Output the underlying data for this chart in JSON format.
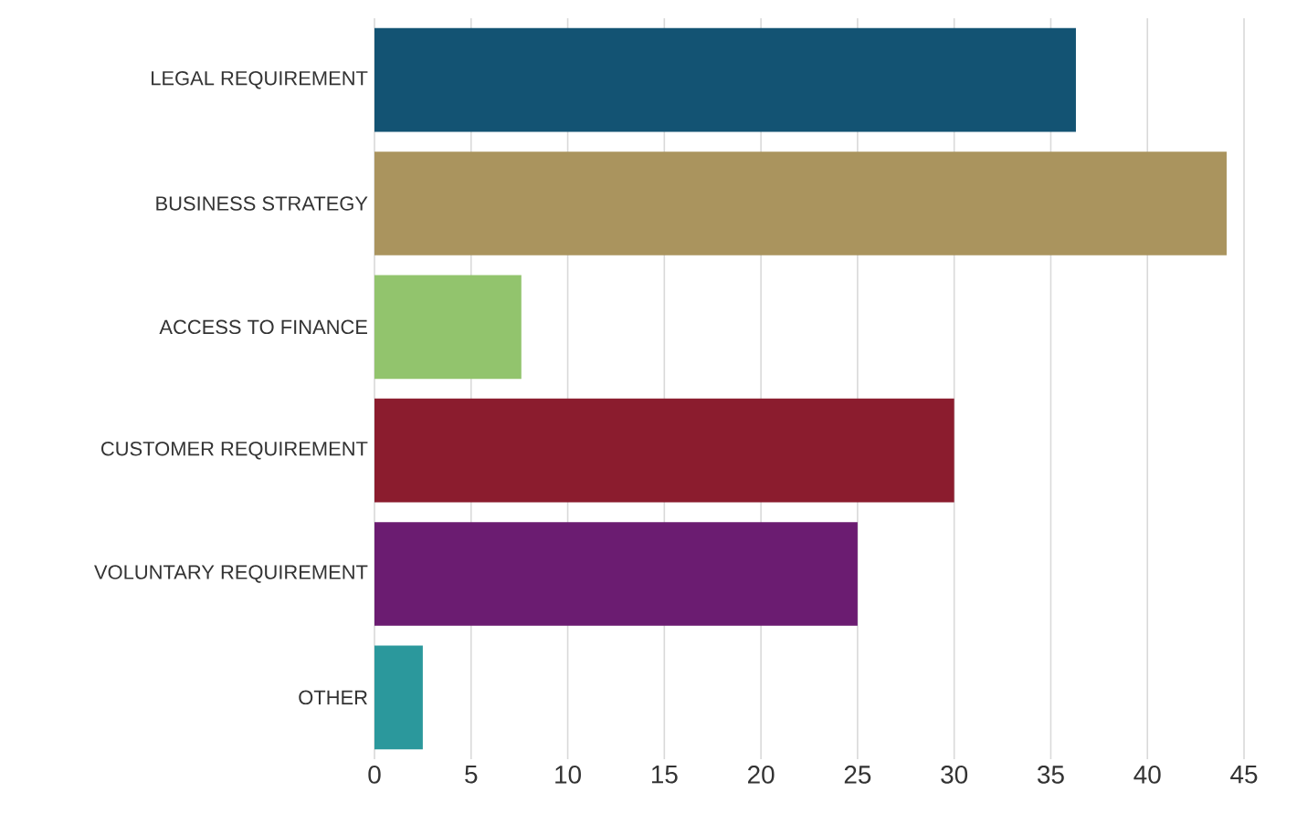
{
  "chart_data": {
    "type": "bar",
    "orientation": "horizontal",
    "categories": [
      "LEGAL REQUIREMENT",
      "BUSINESS STRATEGY",
      "ACCESS TO FINANCE",
      "CUSTOMER REQUIREMENT",
      "VOLUNTARY REQUIREMENT",
      "OTHER"
    ],
    "values": [
      36.3,
      44.1,
      7.6,
      30.0,
      25.0,
      2.5
    ],
    "colors": [
      "#135373",
      "#aa945e",
      "#92c46d",
      "#8b1c2e",
      "#6b1c71",
      "#2b989c"
    ],
    "xlim": [
      0,
      45
    ],
    "xticks": [
      0,
      5,
      10,
      15,
      20,
      25,
      30,
      35,
      40,
      45
    ],
    "grid": "x"
  }
}
